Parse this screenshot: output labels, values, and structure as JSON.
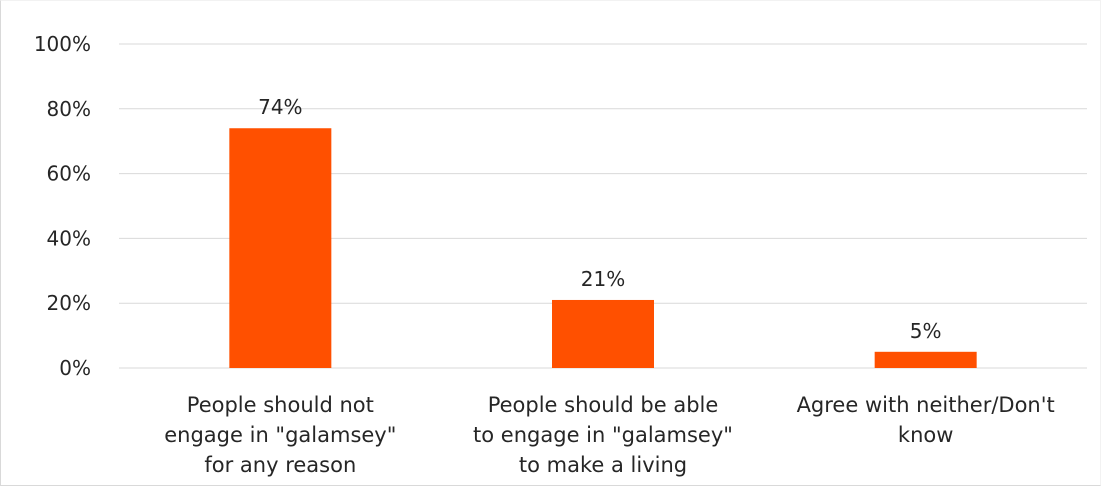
{
  "chart_data": {
    "type": "bar",
    "categories": [
      [
        "People should not",
        "engage in \"galamsey\"",
        "for any reason"
      ],
      [
        "People should be able",
        "to engage in \"galamsey\"",
        "to make a living"
      ],
      [
        "Agree with neither/Don't",
        "know"
      ]
    ],
    "values": [
      74,
      21,
      5
    ],
    "data_labels": [
      "74%",
      "21%",
      "5%"
    ],
    "y_ticks": [
      "0%",
      "20%",
      "40%",
      "60%",
      "80%",
      "100%"
    ],
    "y_tick_values": [
      0,
      20,
      40,
      60,
      80,
      100
    ],
    "ylim": [
      0,
      100
    ],
    "grid": true,
    "bar_color": "#FF5000",
    "grid_color": "#d9d9d9"
  }
}
